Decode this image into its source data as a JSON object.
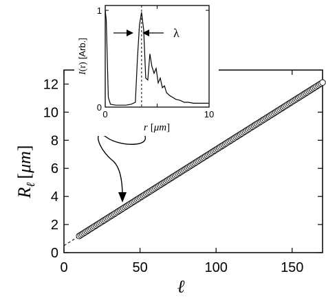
{
  "chart_data": [
    {
      "type": "scatter",
      "panel": "main",
      "xlabel": {
        "symbol": "ℓ"
      },
      "ylabel": {
        "symbol": "R",
        "subscript": "ℓ",
        "unit_open": "[",
        "unit": "μm",
        "unit_close": "]"
      },
      "xlim": [
        0,
        170
      ],
      "ylim": [
        0,
        13
      ],
      "x_ticks": [
        0,
        50,
        100,
        150
      ],
      "y_ticks": [
        0,
        2,
        4,
        6,
        8,
        10,
        12
      ],
      "grid": false,
      "series": [
        {
          "marker": "open-circle",
          "points": {
            "x_start": 10,
            "x_end": 170,
            "x_step": 1,
            "slope": 0.0683,
            "intercept": 0.5
          }
        }
      ],
      "fit_line": {
        "style": "dashed",
        "slope": 0.0683,
        "intercept": 0.5,
        "x_range": [
          0,
          12
        ]
      },
      "annotation": {
        "style": "curved-arrow",
        "from": "inset x = 3.5",
        "to_x": 40
      }
    },
    {
      "type": "line",
      "panel": "inset",
      "xlabel": {
        "symbol": "r",
        "unit_open": "[",
        "unit": "μm",
        "unit_close": "]"
      },
      "ylabel": {
        "symbol": "I",
        "arg": "(r)",
        "unit": "[Arb.]"
      },
      "xlim": [
        0,
        10
      ],
      "ylim": [
        0,
        1.05
      ],
      "x_ticks": [
        0,
        5,
        10
      ],
      "y_ticks": [
        0,
        1
      ],
      "x_tick_labels": [
        "0",
        "",
        "10"
      ],
      "y_tick_labels": [
        "0",
        "1"
      ],
      "x": [
        0,
        0.1,
        0.2,
        0.3,
        0.5,
        1.0,
        1.5,
        2.0,
        2.5,
        2.9,
        3.1,
        3.3,
        3.5,
        3.7,
        3.9,
        4.1,
        4.3,
        4.5,
        4.7,
        4.9,
        5.1,
        5.3,
        5.5,
        5.7,
        5.9,
        6.2,
        6.5,
        6.8,
        7.2,
        7.6,
        8.0,
        8.5,
        9.0,
        10.0
      ],
      "y": [
        1.0,
        0.9,
        0.5,
        0.1,
        0.03,
        0.02,
        0.02,
        0.02,
        0.03,
        0.05,
        0.5,
        0.85,
        0.98,
        0.8,
        0.3,
        0.28,
        0.55,
        0.42,
        0.35,
        0.4,
        0.25,
        0.3,
        0.2,
        0.22,
        0.15,
        0.12,
        0.1,
        0.08,
        0.07,
        0.05,
        0.05,
        0.04,
        0.04,
        0.04
      ],
      "peak_marker": {
        "x": 3.5,
        "style": "dashed-vertical"
      },
      "annotation": {
        "label": "λ",
        "style": "opposed-arrows",
        "y": 0.78,
        "x_range": [
          3.0,
          4.0
        ]
      }
    }
  ]
}
